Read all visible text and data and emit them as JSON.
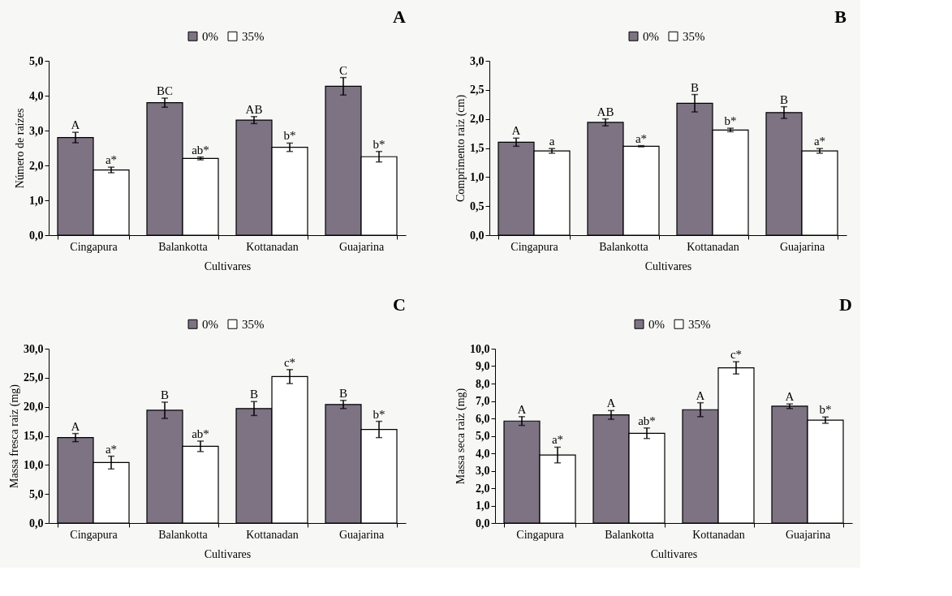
{
  "chart_data": [
    {
      "type": "bar",
      "title": "A",
      "xlabel": "Cultivares",
      "ylabel": "Número de raízes",
      "categories": [
        "Cingapura",
        "Balankotta",
        "Kottanadan",
        "Guajarina"
      ],
      "ylim": [
        0,
        5
      ],
      "yticks": [
        {
          "value": 0,
          "label": "0,0"
        },
        {
          "value": 1,
          "label": "1,0"
        },
        {
          "value": 2,
          "label": "2,0"
        },
        {
          "value": 3,
          "label": "3,0"
        },
        {
          "value": 4,
          "label": "4,0"
        },
        {
          "value": 5,
          "label": "5,0"
        }
      ],
      "legend": "top",
      "grid": false,
      "series": [
        {
          "name": "0%",
          "color": "#7d7383",
          "values": [
            2.8,
            3.8,
            3.3,
            4.27
          ],
          "errors": [
            0.15,
            0.13,
            0.1,
            0.25
          ],
          "value_labels": [
            "A",
            "BC",
            "AB",
            "C"
          ]
        },
        {
          "name": "35%",
          "color": "#ffffff",
          "values": [
            1.87,
            2.2,
            2.52,
            2.25
          ],
          "errors": [
            0.08,
            0.04,
            0.12,
            0.15
          ],
          "value_labels": [
            "a*",
            "ab*",
            "b*",
            "b*"
          ]
        }
      ]
    },
    {
      "type": "bar",
      "title": "B",
      "xlabel": "Cultivares",
      "ylabel": "Comprimento raiz (cm)",
      "categories": [
        "Cingapura",
        "Balankotta",
        "Kottanadan",
        "Guajarina"
      ],
      "ylim": [
        0,
        3
      ],
      "yticks": [
        {
          "value": 0,
          "label": "0,0"
        },
        {
          "value": 0.5,
          "label": "0,5"
        },
        {
          "value": 1,
          "label": "1,0"
        },
        {
          "value": 1.5,
          "label": "1,5"
        },
        {
          "value": 2,
          "label": "2,0"
        },
        {
          "value": 2.5,
          "label": "2,5"
        },
        {
          "value": 3,
          "label": "3,0"
        }
      ],
      "legend": "top",
      "grid": false,
      "series": [
        {
          "name": "0%",
          "color": "#7d7383",
          "values": [
            1.6,
            1.94,
            2.27,
            2.11
          ],
          "errors": [
            0.07,
            0.06,
            0.15,
            0.1
          ],
          "value_labels": [
            "A",
            "AB",
            "B",
            "B"
          ]
        },
        {
          "name": "35%",
          "color": "#ffffff",
          "values": [
            1.45,
            1.53,
            1.81,
            1.45
          ],
          "errors": [
            0.04,
            0.01,
            0.03,
            0.04
          ],
          "value_labels": [
            "a",
            "a*",
            "b*",
            "a*"
          ]
        }
      ]
    },
    {
      "type": "bar",
      "title": "C",
      "xlabel": "Cultivares",
      "ylabel": "Massa fresca raiz (mg)",
      "categories": [
        "Cingapura",
        "Balankotta",
        "Kottanadan",
        "Guajarina"
      ],
      "ylim": [
        0,
        30
      ],
      "yticks": [
        {
          "value": 0,
          "label": "0,0"
        },
        {
          "value": 5,
          "label": "5,0"
        },
        {
          "value": 10,
          "label": "10,0"
        },
        {
          "value": 15,
          "label": "15,0"
        },
        {
          "value": 20,
          "label": "20,0"
        },
        {
          "value": 25,
          "label": "25,0"
        },
        {
          "value": 30,
          "label": "30,0"
        }
      ],
      "legend": "top",
      "grid": false,
      "series": [
        {
          "name": "0%",
          "color": "#7d7383",
          "values": [
            14.7,
            19.4,
            19.7,
            20.4
          ],
          "errors": [
            0.7,
            1.4,
            1.2,
            0.7
          ],
          "value_labels": [
            "A",
            "B",
            "B",
            "B"
          ]
        },
        {
          "name": "35%",
          "color": "#ffffff",
          "values": [
            10.4,
            13.2,
            25.2,
            16.1
          ],
          "errors": [
            1.1,
            0.9,
            1.2,
            1.4
          ],
          "value_labels": [
            "a*",
            "ab*",
            "c*",
            "b*"
          ]
        }
      ]
    },
    {
      "type": "bar",
      "title": "D",
      "xlabel": "Cultivares",
      "ylabel": "Massa seca raiz (mg)",
      "categories": [
        "Cingapura",
        "Balankotta",
        "Kottanadan",
        "Guajarina"
      ],
      "ylim": [
        0,
        10
      ],
      "yticks": [
        {
          "value": 0,
          "label": "0,0"
        },
        {
          "value": 1,
          "label": "1,0"
        },
        {
          "value": 2,
          "label": "2,0"
        },
        {
          "value": 3,
          "label": "3,0"
        },
        {
          "value": 4,
          "label": "4,0"
        },
        {
          "value": 5,
          "label": "5,0"
        },
        {
          "value": 6,
          "label": "6,0"
        },
        {
          "value": 7,
          "label": "7,0"
        },
        {
          "value": 8,
          "label": "8,0"
        },
        {
          "value": 9,
          "label": "9,0"
        },
        {
          "value": 10,
          "label": "10,0"
        }
      ],
      "legend": "top",
      "grid": false,
      "series": [
        {
          "name": "0%",
          "color": "#7d7383",
          "values": [
            5.85,
            6.2,
            6.5,
            6.7
          ],
          "errors": [
            0.25,
            0.25,
            0.4,
            0.13
          ],
          "value_labels": [
            "A",
            "A",
            "A",
            "A"
          ]
        },
        {
          "name": "35%",
          "color": "#ffffff",
          "values": [
            3.9,
            5.15,
            8.9,
            5.9
          ],
          "errors": [
            0.45,
            0.3,
            0.35,
            0.18
          ],
          "value_labels": [
            "a*",
            "ab*",
            "c*",
            "b*"
          ]
        }
      ]
    }
  ]
}
